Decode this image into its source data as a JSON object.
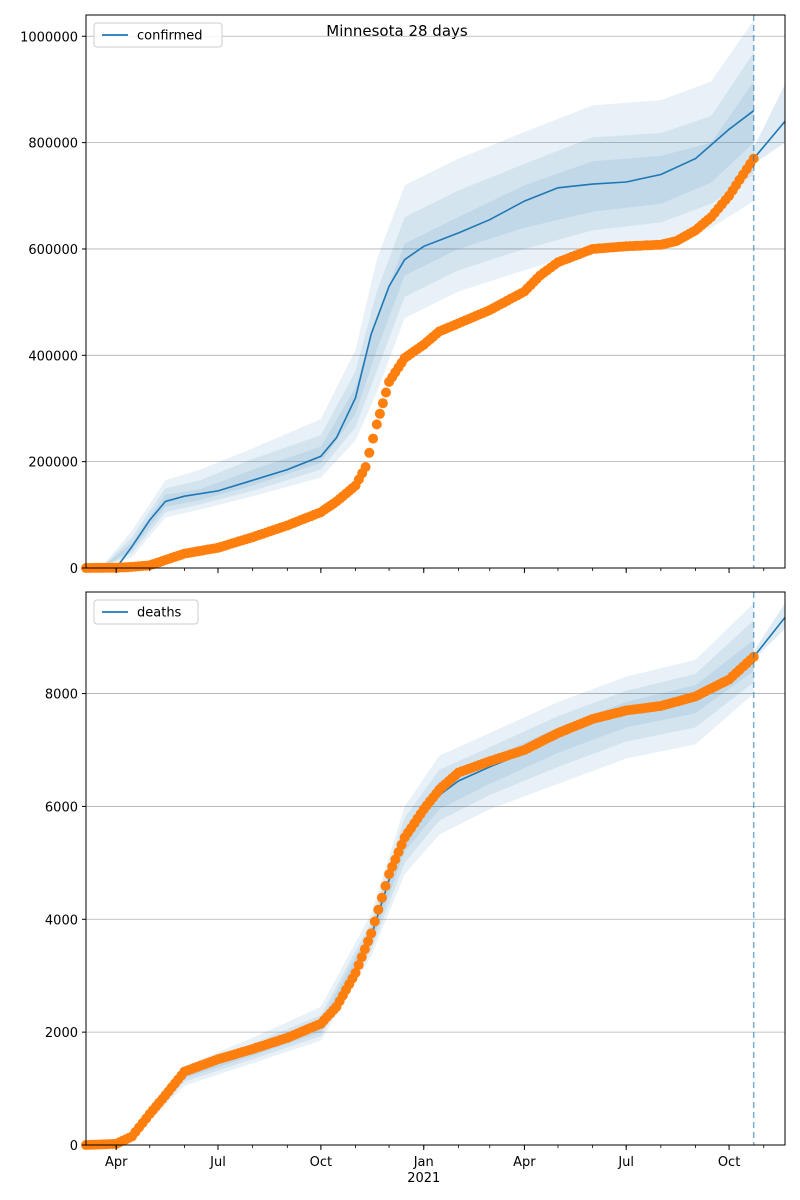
{
  "suptitle": "Minnesota 28 days",
  "colors": {
    "model": "#1f77b4",
    "observed": "#ff7f0e",
    "band": "#1f77b4",
    "grid": "#b0b0b0",
    "vline": "#1f77b4"
  },
  "x_axis": {
    "type": "date",
    "range": [
      "2020-03-05",
      "2021-11-20"
    ],
    "tick_labels": [
      "Apr",
      "Jul",
      "Oct",
      "Jan",
      "Apr",
      "Jul",
      "Oct"
    ],
    "tick_dates": [
      "2020-04-01",
      "2020-07-01",
      "2020-10-01",
      "2021-01-01",
      "2021-04-01",
      "2021-07-01",
      "2021-10-01"
    ],
    "year_label": "2021",
    "forecast_start": "2021-10-23"
  },
  "chart_data": [
    {
      "type": "line",
      "legend": "confirmed",
      "legend_position": "upper-left",
      "grid": "y",
      "ylim": [
        0,
        1040000
      ],
      "y_ticks": [
        0,
        200000,
        400000,
        600000,
        800000,
        1000000
      ],
      "y_tick_labels": [
        "0",
        "200000",
        "400000",
        "600000",
        "800000",
        "1000000"
      ],
      "series": [
        {
          "name": "confirmed",
          "x": [
            "2020-03-05",
            "2020-04-01",
            "2020-04-15",
            "2020-05-01",
            "2020-05-15",
            "2020-06-01",
            "2020-07-01",
            "2020-08-01",
            "2020-09-01",
            "2020-10-01",
            "2020-10-15",
            "2020-11-01",
            "2020-11-15",
            "2020-12-01",
            "2020-12-15",
            "2021-01-01",
            "2021-02-01",
            "2021-03-01",
            "2021-04-01",
            "2021-05-01",
            "2021-06-01",
            "2021-07-01",
            "2021-08-01",
            "2021-09-01",
            "2021-10-01",
            "2021-10-23"
          ],
          "y": [
            0,
            0,
            40000,
            90000,
            125000,
            135000,
            145000,
            165000,
            185000,
            210000,
            245000,
            320000,
            440000,
            530000,
            580000,
            605000,
            630000,
            655000,
            690000,
            715000,
            722000,
            726000,
            740000,
            770000,
            825000,
            860000
          ]
        },
        {
          "name": "confirmed forecast",
          "x": [
            "2021-10-23",
            "2021-11-20"
          ],
          "y": [
            770000,
            840000
          ]
        }
      ],
      "bands": [
        {
          "x": [
            "2020-03-20",
            "2020-04-15",
            "2020-05-15",
            "2020-06-15",
            "2020-08-01",
            "2020-10-01",
            "2020-11-01",
            "2020-11-20",
            "2020-12-15",
            "2021-02-01",
            "2021-04-01",
            "2021-06-01",
            "2021-08-01",
            "2021-09-15",
            "2021-10-23"
          ],
          "lower": [
            0,
            20000,
            95000,
            110000,
            135000,
            170000,
            240000,
            330000,
            470000,
            520000,
            560000,
            600000,
            610000,
            640000,
            690000
          ],
          "upper": [
            5000,
            70000,
            165000,
            185000,
            225000,
            280000,
            410000,
            580000,
            720000,
            770000,
            820000,
            870000,
            880000,
            915000,
            1030000
          ]
        },
        {
          "x": [
            "2020-03-20",
            "2020-04-15",
            "2020-05-15",
            "2020-06-15",
            "2020-08-01",
            "2020-10-01",
            "2020-11-01",
            "2020-11-20",
            "2020-12-15",
            "2021-02-01",
            "2021-04-01",
            "2021-06-01",
            "2021-08-01",
            "2021-09-15",
            "2021-10-23"
          ],
          "lower": [
            0,
            28000,
            105000,
            120000,
            145000,
            185000,
            265000,
            370000,
            510000,
            560000,
            600000,
            635000,
            650000,
            685000,
            740000
          ],
          "upper": [
            3000,
            58000,
            150000,
            165000,
            205000,
            250000,
            370000,
            520000,
            660000,
            710000,
            760000,
            810000,
            818000,
            850000,
            970000
          ]
        },
        {
          "x": [
            "2020-03-20",
            "2020-04-15",
            "2020-05-15",
            "2020-06-15",
            "2020-08-01",
            "2020-10-01",
            "2020-11-01",
            "2020-11-20",
            "2020-12-15",
            "2021-02-01",
            "2021-04-01",
            "2021-06-01",
            "2021-08-01",
            "2021-09-15",
            "2021-10-23"
          ],
          "lower": [
            0,
            35000,
            115000,
            128000,
            155000,
            198000,
            290000,
            410000,
            550000,
            600000,
            640000,
            670000,
            685000,
            725000,
            800000
          ],
          "upper": [
            2000,
            48000,
            138000,
            148000,
            185000,
            228000,
            340000,
            470000,
            610000,
            660000,
            720000,
            765000,
            775000,
            800000,
            915000
          ]
        }
      ],
      "forecast_band": {
        "x": [
          "2021-10-23",
          "2021-11-20"
        ],
        "lower": [
          760000,
          800000
        ],
        "upper": [
          790000,
          910000
        ]
      },
      "observed": {
        "name": "observed confirmed",
        "x": [
          "2020-03-05",
          "2020-04-01",
          "2020-04-15",
          "2020-05-01",
          "2020-05-15",
          "2020-06-01",
          "2020-07-01",
          "2020-08-01",
          "2020-09-01",
          "2020-10-01",
          "2020-10-15",
          "2020-11-01",
          "2020-11-10",
          "2020-11-20",
          "2020-12-01",
          "2020-12-15",
          "2021-01-01",
          "2021-01-15",
          "2021-02-01",
          "2021-03-01",
          "2021-04-01",
          "2021-04-15",
          "2021-05-01",
          "2021-06-01",
          "2021-07-01",
          "2021-08-01",
          "2021-08-15",
          "2021-09-01",
          "2021-09-15",
          "2021-10-01",
          "2021-10-23"
        ],
        "y": [
          0,
          500,
          2000,
          5000,
          15000,
          27000,
          38000,
          58000,
          80000,
          105000,
          125000,
          155000,
          190000,
          270000,
          350000,
          395000,
          420000,
          445000,
          460000,
          485000,
          520000,
          550000,
          575000,
          600000,
          605000,
          608000,
          615000,
          635000,
          660000,
          700000,
          770000
        ]
      }
    },
    {
      "type": "line",
      "legend": "deaths",
      "legend_position": "upper-left",
      "grid": "y",
      "ylim": [
        0,
        9800
      ],
      "y_ticks": [
        0,
        2000,
        4000,
        6000,
        8000
      ],
      "y_tick_labels": [
        "0",
        "2000",
        "4000",
        "6000",
        "8000"
      ],
      "series": [
        {
          "name": "deaths",
          "x": [
            "2020-03-05",
            "2020-04-01",
            "2020-04-15",
            "2020-05-01",
            "2020-05-15",
            "2020-06-01",
            "2020-07-01",
            "2020-08-01",
            "2020-09-01",
            "2020-10-01",
            "2020-10-15",
            "2020-11-01",
            "2020-11-15",
            "2020-12-01",
            "2020-12-15",
            "2021-01-01",
            "2021-01-15",
            "2021-02-01",
            "2021-03-01",
            "2021-04-01",
            "2021-05-01",
            "2021-06-01",
            "2021-07-01",
            "2021-08-01",
            "2021-09-01",
            "2021-10-01",
            "2021-10-23"
          ],
          "y": [
            0,
            20,
            150,
            500,
            850,
            1250,
            1500,
            1650,
            1850,
            2100,
            2400,
            3000,
            3700,
            4700,
            5400,
            5900,
            6200,
            6450,
            6700,
            6950,
            7250,
            7550,
            7680,
            7780,
            7950,
            8250,
            8650
          ]
        },
        {
          "name": "deaths forecast",
          "x": [
            "2021-10-23",
            "2021-11-20"
          ],
          "y": [
            8650,
            9350
          ]
        }
      ],
      "bands": [
        {
          "x": [
            "2020-04-15",
            "2020-06-01",
            "2020-08-01",
            "2020-10-01",
            "2020-11-15",
            "2020-12-15",
            "2021-01-15",
            "2021-03-01",
            "2021-05-01",
            "2021-07-01",
            "2021-09-01",
            "2021-10-23"
          ],
          "lower": [
            100,
            1050,
            1450,
            1850,
            3350,
            4800,
            5500,
            5950,
            6400,
            6850,
            7100,
            8000
          ],
          "upper": [
            200,
            1400,
            1900,
            2450,
            4100,
            6000,
            6900,
            7300,
            7850,
            8300,
            8600,
            9600
          ]
        },
        {
          "x": [
            "2020-04-15",
            "2020-06-01",
            "2020-08-01",
            "2020-10-01",
            "2020-11-15",
            "2020-12-15",
            "2021-01-15",
            "2021-03-01",
            "2021-05-01",
            "2021-07-01",
            "2021-09-01",
            "2021-10-23"
          ],
          "lower": [
            120,
            1120,
            1520,
            1930,
            3450,
            5000,
            5750,
            6200,
            6700,
            7150,
            7400,
            8200
          ],
          "upper": [
            180,
            1350,
            1800,
            2300,
            3950,
            5800,
            6650,
            7050,
            7600,
            8050,
            8350,
            9300
          ]
        },
        {
          "x": [
            "2020-04-15",
            "2020-06-01",
            "2020-08-01",
            "2020-10-01",
            "2020-11-15",
            "2020-12-15",
            "2021-01-15",
            "2021-03-01",
            "2021-05-01",
            "2021-07-01",
            "2021-09-01",
            "2021-10-23"
          ],
          "lower": [
            140,
            1180,
            1580,
            2000,
            3550,
            5200,
            5950,
            6400,
            6950,
            7400,
            7650,
            8400
          ],
          "upper": [
            160,
            1300,
            1720,
            2200,
            3850,
            5600,
            6450,
            6850,
            7400,
            7850,
            8150,
            8950
          ]
        }
      ],
      "forecast_band": {
        "x": [
          "2021-10-23",
          "2021-11-20"
        ],
        "lower": [
          8600,
          9150
        ],
        "upper": [
          8750,
          9600
        ]
      },
      "observed": {
        "name": "observed deaths",
        "x": [
          "2020-03-05",
          "2020-04-01",
          "2020-04-15",
          "2020-05-01",
          "2020-05-15",
          "2020-06-01",
          "2020-07-01",
          "2020-08-01",
          "2020-09-01",
          "2020-10-01",
          "2020-10-15",
          "2020-11-01",
          "2020-11-15",
          "2020-12-01",
          "2020-12-15",
          "2021-01-01",
          "2021-01-15",
          "2021-02-01",
          "2021-03-01",
          "2021-04-01",
          "2021-05-01",
          "2021-06-01",
          "2021-07-01",
          "2021-08-01",
          "2021-09-01",
          "2021-10-01",
          "2021-10-23"
        ],
        "y": [
          0,
          20,
          150,
          550,
          880,
          1300,
          1520,
          1700,
          1900,
          2150,
          2450,
          3050,
          3750,
          4800,
          5450,
          5950,
          6300,
          6600,
          6800,
          7000,
          7300,
          7550,
          7700,
          7780,
          7950,
          8250,
          8650
        ]
      }
    }
  ]
}
